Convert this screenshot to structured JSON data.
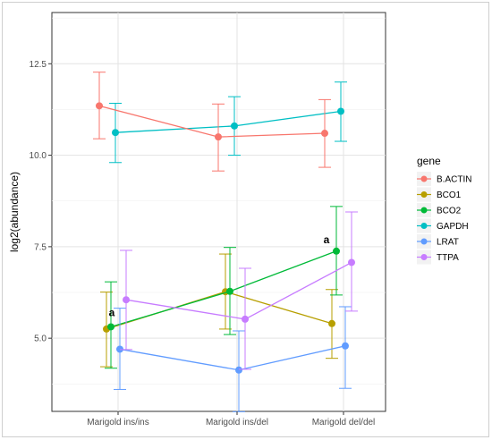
{
  "chart_data": {
    "type": "line",
    "title": "",
    "xlabel": "",
    "ylabel": "log2(abundance)",
    "categories": [
      "Marigold ins/ins",
      "Marigold ins/del",
      "Marigold del/del"
    ],
    "yticks": [
      "5.0",
      "7.5",
      "10.0",
      "12.5"
    ],
    "ylim": [
      3.0,
      13.9
    ],
    "grid": true,
    "legend": {
      "title": "gene",
      "position": "right"
    },
    "series": [
      {
        "name": "B.ACTIN",
        "color": "#F8766D",
        "values": [
          11.35,
          10.5,
          10.6
        ],
        "lower": [
          10.45,
          9.57,
          9.67
        ],
        "upper": [
          12.27,
          11.4,
          11.52
        ]
      },
      {
        "name": "BCO1",
        "color": "#B79F00",
        "values": [
          5.25,
          6.27,
          5.4
        ],
        "lower": [
          4.22,
          5.25,
          4.45
        ],
        "upper": [
          6.26,
          7.3,
          6.33
        ]
      },
      {
        "name": "BCO2",
        "color": "#00BA38",
        "values": [
          5.31,
          6.28,
          7.38
        ],
        "lower": [
          4.18,
          5.1,
          6.18
        ],
        "upper": [
          6.54,
          7.48,
          8.6
        ]
      },
      {
        "name": "GAPDH",
        "color": "#00BFC4",
        "values": [
          10.62,
          10.8,
          11.2
        ],
        "lower": [
          9.8,
          10.0,
          10.38
        ],
        "upper": [
          11.42,
          11.6,
          12.0
        ]
      },
      {
        "name": "LRAT",
        "color": "#619CFF",
        "values": [
          4.7,
          4.13,
          4.79
        ],
        "lower": [
          3.6,
          2.99,
          3.63
        ],
        "upper": [
          5.82,
          5.2,
          5.86
        ]
      },
      {
        "name": "TTPA",
        "color": "#C77CFF",
        "values": [
          6.05,
          5.52,
          7.07
        ],
        "lower": [
          4.69,
          4.15,
          5.74
        ],
        "upper": [
          7.4,
          6.91,
          8.45
        ]
      }
    ],
    "annotations": [
      {
        "text": "a",
        "category": "Marigold ins/ins",
        "y": 5.55
      },
      {
        "text": "a",
        "category": "Marigold del/del",
        "y": 7.55
      }
    ]
  }
}
